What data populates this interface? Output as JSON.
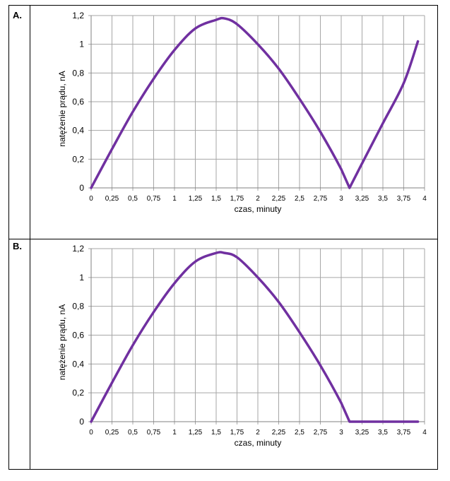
{
  "panels": [
    {
      "label": "A."
    },
    {
      "label": "B."
    }
  ],
  "chart_data": [
    {
      "type": "line",
      "xlabel": "czas, minuty",
      "ylabel": "natężenie prądu, nA",
      "xlim": [
        0,
        4
      ],
      "ylim": [
        0,
        1.2
      ],
      "xticks": [
        "0",
        "0,25",
        "0,5",
        "0,75",
        "1",
        "1,25",
        "1,5",
        "1,75",
        "2",
        "2,25",
        "2,5",
        "2,75",
        "3",
        "3,25",
        "3,5",
        "3,75",
        "4"
      ],
      "yticks": [
        "0",
        "0,2",
        "0,4",
        "0,6",
        "0,8",
        "1",
        "1,2"
      ],
      "grid": true,
      "line_color": "#7030a0",
      "series": [
        {
          "x": [
            0,
            0.25,
            0.5,
            0.75,
            1,
            1.25,
            1.5,
            1.6,
            1.75,
            2,
            2.25,
            2.5,
            2.75,
            3,
            3.1,
            3.25,
            3.5,
            3.75,
            3.92
          ],
          "y": [
            0,
            0.27,
            0.53,
            0.76,
            0.96,
            1.11,
            1.17,
            1.18,
            1.14,
            1.0,
            0.83,
            0.62,
            0.39,
            0.13,
            0,
            0.17,
            0.45,
            0.73,
            1.02
          ]
        }
      ]
    },
    {
      "type": "line",
      "xlabel": "czas, minuty",
      "ylabel": "natężenie prądu, nA",
      "xlim": [
        0,
        4
      ],
      "ylim": [
        0,
        1.2
      ],
      "xticks": [
        "0",
        "0,25",
        "0,5",
        "0,75",
        "1",
        "1,25",
        "1,5",
        "1,75",
        "2",
        "2,25",
        "2,5",
        "2,75",
        "3",
        "3,25",
        "3,5",
        "3,75",
        "4"
      ],
      "yticks": [
        "0",
        "0,2",
        "0,4",
        "0,6",
        "0,8",
        "1",
        "1,2"
      ],
      "grid": true,
      "line_color": "#7030a0",
      "series": [
        {
          "x": [
            0,
            0.25,
            0.5,
            0.75,
            1,
            1.25,
            1.5,
            1.6,
            1.75,
            2,
            2.25,
            2.5,
            2.75,
            3,
            3.1,
            3.25,
            3.5,
            3.75,
            3.92
          ],
          "y": [
            0,
            0.27,
            0.53,
            0.76,
            0.96,
            1.11,
            1.17,
            1.17,
            1.14,
            1.0,
            0.83,
            0.62,
            0.39,
            0.13,
            0,
            0,
            0,
            0,
            0
          ]
        }
      ]
    }
  ]
}
